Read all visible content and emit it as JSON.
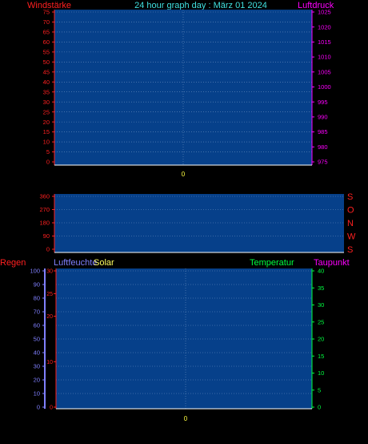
{
  "header": {
    "title": "24 hour graph day : März 01 2024",
    "left_label": "Windstärke",
    "right_label": "Luftdruck"
  },
  "colors": {
    "background": "#000000",
    "plot": "#06408a",
    "grid": "#6b8fbf",
    "wind": "#ff2020",
    "pressure": "#ff00ff",
    "title": "#40e0e0",
    "rain": "#ff2020",
    "humidity": "#8080ff",
    "solar": "#ffff60",
    "temperature": "#00ff40",
    "dewpoint": "#ff00ff",
    "time": "#ffff40"
  },
  "chart_data": [
    {
      "type": "line",
      "title": "24 hour graph day : März 01 2024",
      "left_axis": {
        "label": "Windstärke",
        "ticks": [
          0,
          5,
          10,
          15,
          20,
          25,
          30,
          35,
          40,
          45,
          50,
          55,
          60,
          65,
          70,
          75
        ],
        "ylim": [
          0,
          75
        ]
      },
      "right_axis": {
        "label": "Luftdruck",
        "ticks": [
          975,
          980,
          985,
          990,
          995,
          1000,
          1005,
          1010,
          1015,
          1020,
          1025
        ],
        "ylim": [
          975,
          1025
        ]
      },
      "x_ticks": [
        "0"
      ],
      "series": [],
      "grid": true
    },
    {
      "type": "scatter",
      "left_axis": {
        "ticks": [
          0,
          90,
          180,
          270,
          360
        ],
        "ylim": [
          0,
          360
        ]
      },
      "right_axis": {
        "ticks": [
          "S",
          "W",
          "N",
          "O",
          "S"
        ]
      },
      "series": [],
      "grid": true
    },
    {
      "type": "line",
      "labels": {
        "rain": "Regen",
        "humidity": "Luftfeuchte",
        "solar": "Solar",
        "temperature": "Temperatur",
        "dewpoint": "Taupunkt"
      },
      "humidity_axis": {
        "ticks": [
          0,
          10,
          20,
          30,
          40,
          50,
          60,
          70,
          80,
          90,
          100
        ],
        "ylim": [
          0,
          100
        ]
      },
      "rain_axis": {
        "ticks": [
          0,
          10,
          20,
          25,
          30
        ],
        "ylim": [
          0,
          30
        ]
      },
      "temperature_axis": {
        "ticks": [
          0,
          5,
          10,
          15,
          20,
          25,
          30,
          35,
          40
        ],
        "ylim": [
          0,
          40
        ]
      },
      "x_ticks": [
        "0"
      ],
      "series": [],
      "grid": true
    }
  ]
}
